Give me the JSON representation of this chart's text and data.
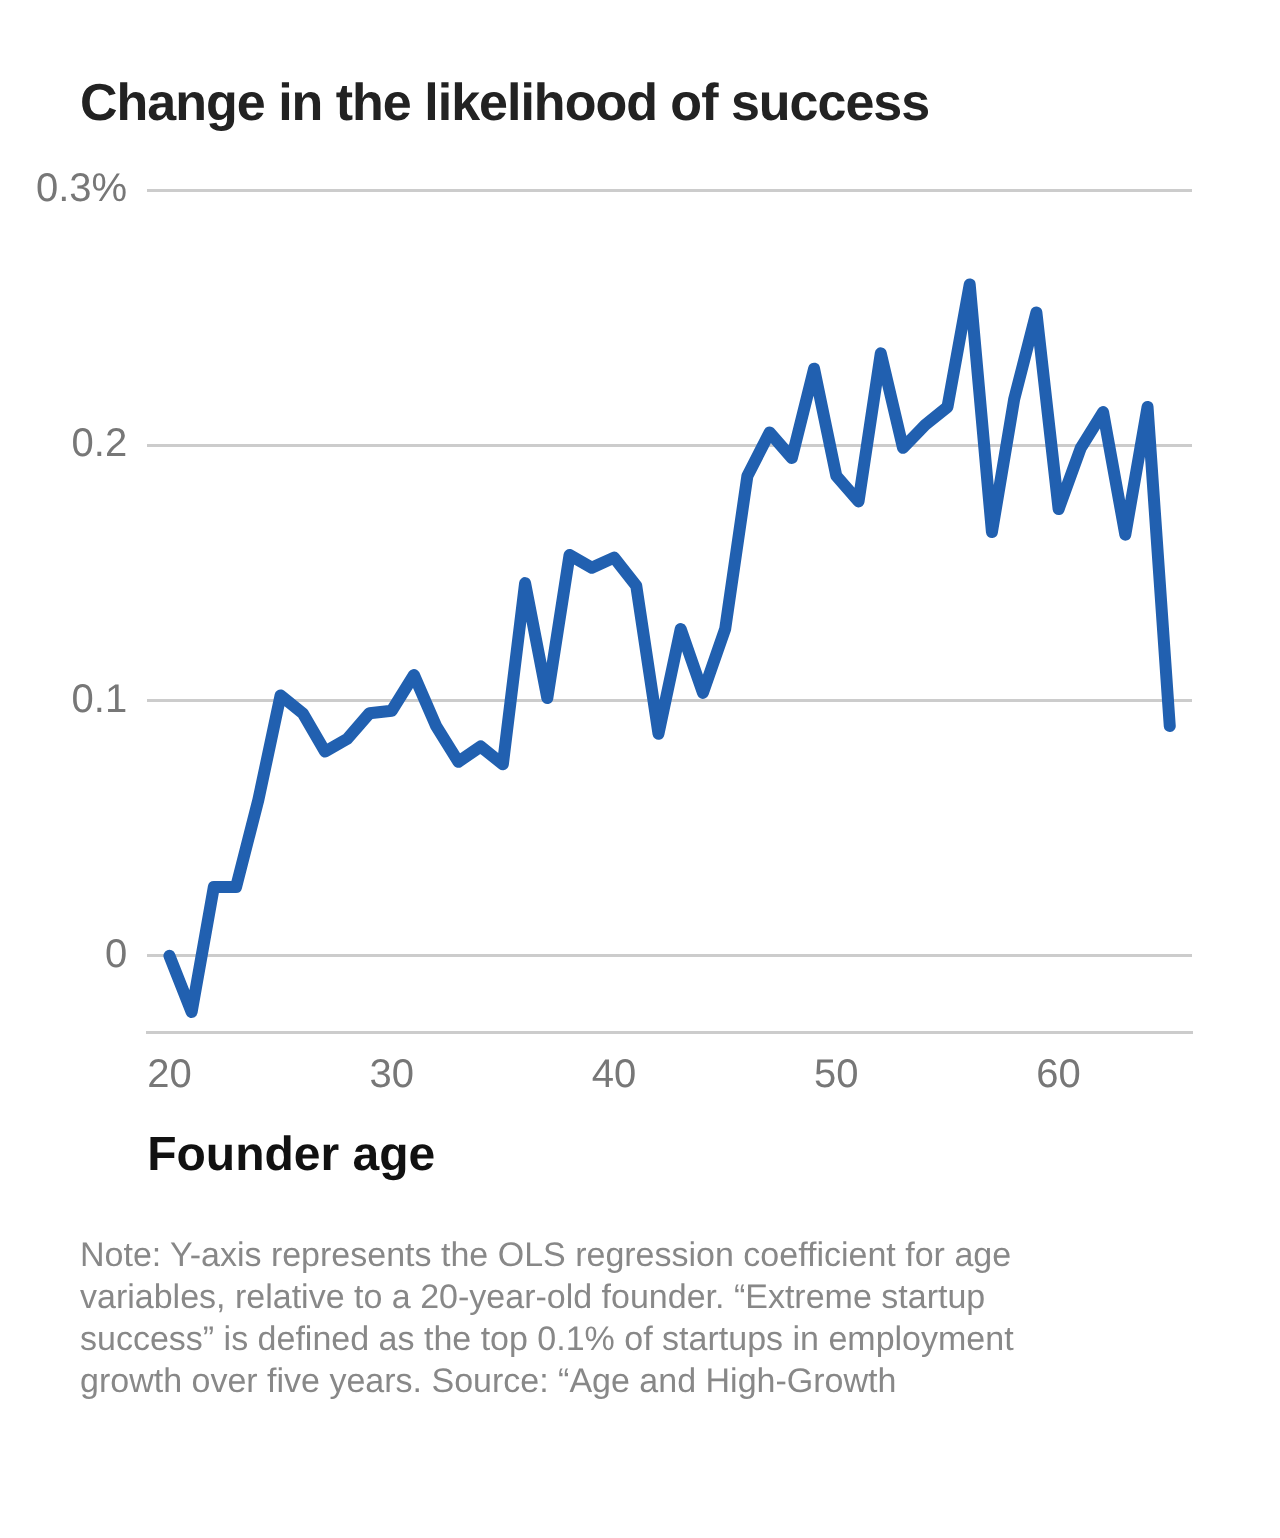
{
  "chart_data": {
    "type": "line",
    "title": "Change in the likelihood of success",
    "xlabel": "Founder age",
    "x": [
      20,
      21,
      22,
      23,
      24,
      25,
      26,
      27,
      28,
      29,
      30,
      31,
      32,
      33,
      34,
      35,
      36,
      37,
      38,
      39,
      40,
      41,
      42,
      43,
      44,
      45,
      46,
      47,
      48,
      49,
      50,
      51,
      52,
      53,
      54,
      55,
      56,
      57,
      58,
      59,
      60,
      61,
      62,
      63,
      64,
      65
    ],
    "series": [
      {
        "color": "#2160b0",
        "values": [
          0,
          -0.022,
          0.027,
          0.027,
          0.061,
          0.102,
          0.095,
          0.08,
          0.085,
          0.095,
          0.096,
          0.11,
          0.09,
          0.076,
          0.082,
          0.075,
          0.146,
          0.101,
          0.157,
          0.152,
          0.156,
          0.145,
          0.087,
          0.128,
          0.103,
          0.128,
          0.188,
          0.205,
          0.195,
          0.23,
          0.188,
          0.178,
          0.236,
          0.199,
          0.208,
          0.215,
          0.263,
          0.166,
          0.218,
          0.252,
          0.175,
          0.199,
          0.213,
          0.165,
          0.215,
          0.09
        ]
      }
    ],
    "xlim": [
      19,
      66
    ],
    "xticks": [
      20,
      30,
      40,
      50,
      60
    ],
    "ylim": [
      -0.03,
      0.3
    ],
    "yticks": [
      0,
      0.1,
      0.2,
      {
        "value": 0.3,
        "label": "0.3%"
      }
    ],
    "grid": "y",
    "legend": false,
    "marker": "none",
    "line_style": "solid",
    "annotations": [
      "Note: Y-axis represents the OLS regression coefficient for age variables, relative to a 20-year-old founder. “Extreme startup success” is defined as the top 0.1% of startups in employment growth over five years. Source: “Age and High-Growth"
    ]
  }
}
